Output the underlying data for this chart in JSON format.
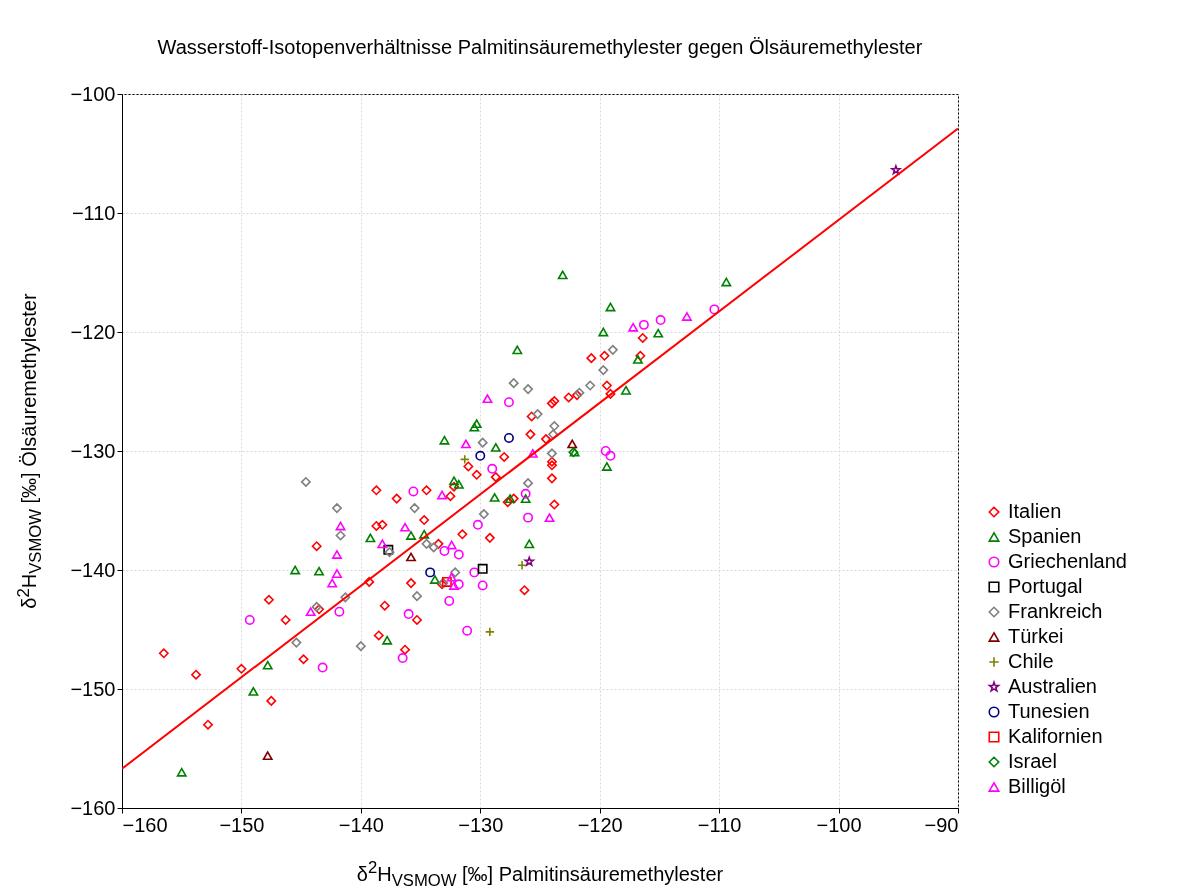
{
  "chart_data": {
    "type": "scatter",
    "title": "Wasserstoff-Isotopenverhältnisse Palmitinsäuremethylester gegen Ölsäuremethylester",
    "xlabel": "δ$^{2}$H$_{VSMOW}$ [‰] Palmitinsäuremethylester",
    "ylabel": "δ$^{2}$H$_{VSMOW}$ [‰] Ölsäuremethylester",
    "xlim": [
      -160,
      -90
    ],
    "ylim": [
      -160,
      -100
    ],
    "xticks": [
      -160,
      -150,
      -140,
      -130,
      -120,
      -110,
      -100,
      -90
    ],
    "yticks": [
      -160,
      -150,
      -140,
      -130,
      -120,
      -110,
      -100
    ],
    "grid": true,
    "legend": "right",
    "series": [
      {
        "name": "Italien",
        "color": "#ff0000",
        "marker": "diamond",
        "x": [
          -156.5,
          -153.8,
          -152.8,
          -150,
          -147.7,
          -147.5,
          -146.3,
          -143.7,
          -144.8,
          -143.5,
          -139.3,
          -138.7,
          -138.7,
          -138.2,
          -138,
          -137,
          -134.5,
          -134.7,
          -133.2,
          -133.5,
          -136.3,
          -138.5,
          -135.3,
          -132.5,
          -132.2,
          -131.5,
          -131,
          -130.3,
          -129.2,
          -128.7,
          -128,
          -127.7,
          -127.2,
          -126.3,
          -125.7,
          -125.8,
          -124,
          -123.8,
          -124,
          -124,
          -124,
          -123.8,
          -122.6,
          -121.9,
          -120.7,
          -119.6,
          -119.4,
          -119.1,
          -116.6,
          -116.4,
          -135.8,
          -124.5
        ],
        "values": [
          -147,
          -148.8,
          -153,
          -148.3,
          -142.5,
          -151,
          -144.2,
          -138,
          -147.5,
          -143.3,
          -141,
          -133.3,
          -136.3,
          -136.2,
          -143,
          -134,
          -133.3,
          -135.8,
          -141.2,
          -137.8,
          -146.7,
          -145.5,
          -144.2,
          -133.8,
          -133,
          -137,
          -131.3,
          -132,
          -137.3,
          -132.2,
          -130.5,
          -134.3,
          -134,
          -141.7,
          -127.1,
          -128.6,
          -126,
          -125.8,
          -130.9,
          -131.2,
          -132.3,
          -134.5,
          -125.5,
          -125.3,
          -122.2,
          -122,
          -124.5,
          -125.2,
          -122,
          -120.5,
          -141.1,
          -129
        ]
      },
      {
        "name": "Spanien",
        "color": "#008000",
        "marker": "triangle",
        "x": [
          -155,
          -149,
          -147.8,
          -145.5,
          -143.5,
          -139.2,
          -137.8,
          -135.8,
          -134.7,
          -133.8,
          -133,
          -132.2,
          -131.8,
          -130.5,
          -130.3,
          -128.7,
          -128.8,
          -127.5,
          -126.9,
          -126.2,
          -125.9,
          -123.1,
          -122.1,
          -119.7,
          -119.4,
          -119.1,
          -117.8,
          -116.8,
          -115.1,
          -109.4
        ],
        "values": [
          -157,
          -150.2,
          -148,
          -140,
          -140.1,
          -137.3,
          -145.9,
          -137.1,
          -137,
          -140.8,
          -129.1,
          -132.5,
          -132.8,
          -128,
          -127.7,
          -129.7,
          -133.9,
          -134,
          -121.5,
          -134,
          -137.8,
          -115.2,
          -130.1,
          -120,
          -131.3,
          -117.9,
          -124.9,
          -122.3,
          -120.1,
          -115.8
        ]
      },
      {
        "name": "Griechenland",
        "color": "#ff00ff",
        "marker": "circle",
        "x": [
          -149.3,
          -143.2,
          -141.8,
          -136.5,
          -136,
          -135.6,
          -133,
          -132.6,
          -131.8,
          -131.8,
          -131.1,
          -130.5,
          -130.2,
          -129.8,
          -129,
          -127.6,
          -126.2,
          -126,
          -119.5,
          -119.1,
          -116.3,
          -114.9,
          -110.4
        ],
        "values": [
          -144.2,
          -148.2,
          -143.5,
          -147.4,
          -143.7,
          -133.4,
          -138.4,
          -142.6,
          -138.7,
          -141.2,
          -145.1,
          -140.2,
          -136.2,
          -141.3,
          -131.5,
          -125.9,
          -133.6,
          -135.6,
          -130,
          -130.4,
          -119.4,
          -119,
          -118.1
        ]
      },
      {
        "name": "Portugal",
        "color": "#000000",
        "marker": "square",
        "x": [
          -137.7,
          -129.8
        ],
        "values": [
          -138.3,
          -139.9
        ]
      },
      {
        "name": "Frankreich",
        "color": "#808080",
        "marker": "diamond",
        "x": [
          -144.6,
          -142,
          -141.7,
          -141.3,
          -143.7,
          -145.4,
          -140,
          -137.6,
          -135.5,
          -135.3,
          -134.5,
          -133.9,
          -133.1,
          -132.1,
          -129.7,
          -129.8,
          -127.2,
          -126,
          -126,
          -125.2,
          -123.8,
          -123.9,
          -124,
          -121.7,
          -120.8,
          -119.7,
          -118.9
        ],
        "values": [
          -132.6,
          -134.8,
          -137.1,
          -142.3,
          -143.1,
          -146.1,
          -146.4,
          -138.5,
          -134.8,
          -142.2,
          -137.8,
          -138.1,
          -141.1,
          -140.2,
          -135.3,
          -129.3,
          -124.3,
          -124.8,
          -132.7,
          -126.9,
          -127.9,
          -128.6,
          -130.2,
          -125.1,
          -124.5,
          -123.2,
          -121.5
        ]
      },
      {
        "name": "Türkei",
        "color": "#800000",
        "marker": "triangle",
        "x": [
          -147.8,
          -135.8,
          -122.3
        ],
        "values": [
          -155.6,
          -138.9,
          -129.4
        ]
      },
      {
        "name": "Chile",
        "color": "#808000",
        "marker": "cross",
        "x": [
          -131.3,
          -126.5,
          -129.2
        ],
        "values": [
          -130.7,
          -139.6,
          -145.2
        ]
      },
      {
        "name": "Australien",
        "color": "#800080",
        "marker": "star",
        "x": [
          -95.2,
          -125.9
        ],
        "values": [
          -106.4,
          -139.3
        ]
      },
      {
        "name": "Tunesien",
        "color": "#000080",
        "marker": "circle",
        "x": [
          -134.2,
          -130,
          -127.6
        ],
        "values": [
          -140.2,
          -130.4,
          -128.9
        ]
      },
      {
        "name": "Kalifornien",
        "color": "#ff0000",
        "marker": "square",
        "x": [
          -132.8
        ],
        "values": [
          -141
        ]
      },
      {
        "name": "Israel",
        "color": "#008000",
        "marker": "diamond",
        "x": [
          -122.2
        ],
        "values": [
          -130.1
        ]
      },
      {
        "name": "Billigöl",
        "color": "#ff00ff",
        "marker": "triangle",
        "x": [
          -144.2,
          -142.4,
          -142,
          -142,
          -141.7,
          -138.2,
          -136.3,
          -133.2,
          -132.4,
          -132.4,
          -132.2,
          -131.2,
          -129.4,
          -125.6,
          -124.2,
          -117.2,
          -112.7
        ],
        "values": [
          -143.5,
          -141.1,
          -140.3,
          -138.7,
          -136.3,
          -137.8,
          -136.4,
          -133.7,
          -137.9,
          -140.6,
          -141.3,
          -129.4,
          -125.6,
          -130.2,
          -135.6,
          -119.6,
          -118.7
        ]
      },
      {
        "type": "line",
        "color": "#ff0000",
        "line_style": "solid",
        "x": [
          -160,
          -90
        ],
        "values": [
          -156.7,
          -102.9
        ]
      }
    ]
  }
}
